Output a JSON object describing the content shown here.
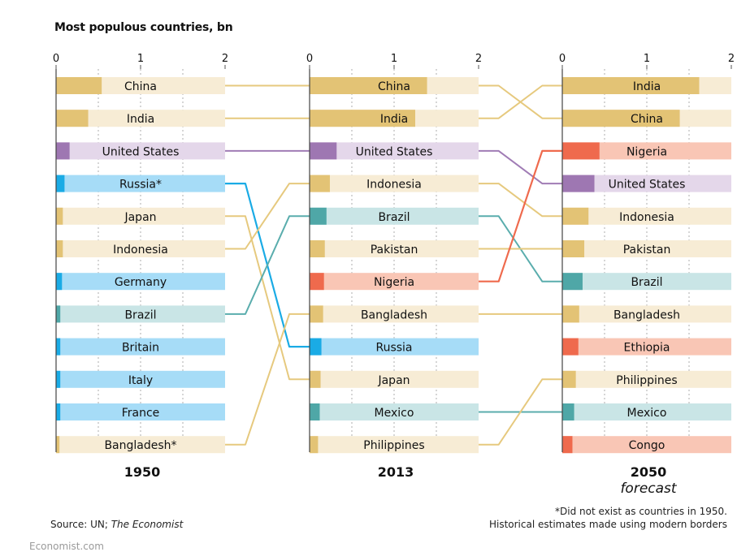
{
  "title": "Most populous countries, bn",
  "source_prefix": "Source: UN; ",
  "source_italic": "The Economist",
  "footnote": [
    "*Did not exist as countries in 1950.",
    "Historical estimates made using modern borders"
  ],
  "watermark": "Economist.com",
  "colors": {
    "gold": {
      "dark": "#e3c375",
      "light": "#f7ecd5",
      "line": "#e6c97e"
    },
    "purple": {
      "dark": "#9e77b2",
      "light": "#e4d7ea",
      "line": "#a07cb5"
    },
    "blue": {
      "dark": "#1aabe5",
      "light": "#a6dcf7",
      "line": "#1aabe5"
    },
    "teal": {
      "dark": "#4fa7a7",
      "light": "#c9e5e6",
      "line": "#5aadad"
    },
    "red": {
      "dark": "#ef6a4d",
      "light": "#f9c6b5",
      "line": "#ef6a4d"
    }
  },
  "chart_data": {
    "type": "bar",
    "title": "Most populous countries, bn",
    "xlim": [
      0,
      2
    ],
    "xticks": [
      "0",
      "1",
      "2"
    ],
    "panels": [
      {
        "year": "1950",
        "subtitle": "",
        "rows": [
          {
            "label": "China",
            "key": "China",
            "value": 0.54,
            "color": "gold"
          },
          {
            "label": "India",
            "key": "India",
            "value": 0.38,
            "color": "gold"
          },
          {
            "label": "United States",
            "key": "United States",
            "value": 0.16,
            "color": "purple"
          },
          {
            "label": "Russia*",
            "key": "Russia",
            "value": 0.1,
            "color": "blue"
          },
          {
            "label": "Japan",
            "key": "Japan",
            "value": 0.08,
            "color": "gold"
          },
          {
            "label": "Indonesia",
            "key": "Indonesia",
            "value": 0.08,
            "color": "gold"
          },
          {
            "label": "Germany",
            "key": "Germany",
            "value": 0.07,
            "color": "blue"
          },
          {
            "label": "Brazil",
            "key": "Brazil",
            "value": 0.05,
            "color": "teal"
          },
          {
            "label": "Britain",
            "key": "Britain",
            "value": 0.05,
            "color": "blue"
          },
          {
            "label": "Italy",
            "key": "Italy",
            "value": 0.05,
            "color": "blue"
          },
          {
            "label": "France",
            "key": "France",
            "value": 0.05,
            "color": "blue"
          },
          {
            "label": "Bangladesh*",
            "key": "Bangladesh",
            "value": 0.04,
            "color": "gold"
          }
        ]
      },
      {
        "year": "2013",
        "subtitle": "",
        "rows": [
          {
            "label": "China",
            "key": "China",
            "value": 1.39,
            "color": "gold"
          },
          {
            "label": "India",
            "key": "India",
            "value": 1.25,
            "color": "gold"
          },
          {
            "label": "United States",
            "key": "United States",
            "value": 0.32,
            "color": "purple"
          },
          {
            "label": "Indonesia",
            "key": "Indonesia",
            "value": 0.24,
            "color": "gold"
          },
          {
            "label": "Brazil",
            "key": "Brazil",
            "value": 0.2,
            "color": "teal"
          },
          {
            "label": "Pakistan",
            "key": "Pakistan",
            "value": 0.18,
            "color": "gold"
          },
          {
            "label": "Nigeria",
            "key": "Nigeria",
            "value": 0.17,
            "color": "red"
          },
          {
            "label": "Bangladesh",
            "key": "Bangladesh",
            "value": 0.16,
            "color": "gold"
          },
          {
            "label": "Russia",
            "key": "Russia",
            "value": 0.14,
            "color": "blue"
          },
          {
            "label": "Japan",
            "key": "Japan",
            "value": 0.13,
            "color": "gold"
          },
          {
            "label": "Mexico",
            "key": "Mexico",
            "value": 0.12,
            "color": "teal"
          },
          {
            "label": "Philippines",
            "key": "Philippines",
            "value": 0.1,
            "color": "gold"
          }
        ]
      },
      {
        "year": "2050",
        "subtitle": "forecast",
        "rows": [
          {
            "label": "India",
            "key": "India",
            "value": 1.62,
            "color": "gold"
          },
          {
            "label": "China",
            "key": "China",
            "value": 1.39,
            "color": "gold"
          },
          {
            "label": "Nigeria",
            "key": "Nigeria",
            "value": 0.44,
            "color": "red"
          },
          {
            "label": "United States",
            "key": "United States",
            "value": 0.38,
            "color": "purple"
          },
          {
            "label": "Indonesia",
            "key": "Indonesia",
            "value": 0.31,
            "color": "gold"
          },
          {
            "label": "Pakistan",
            "key": "Pakistan",
            "value": 0.26,
            "color": "gold"
          },
          {
            "label": "Brazil",
            "key": "Brazil",
            "value": 0.24,
            "color": "teal"
          },
          {
            "label": "Bangladesh",
            "key": "Bangladesh",
            "value": 0.2,
            "color": "gold"
          },
          {
            "label": "Ethiopia",
            "key": "Ethiopia",
            "value": 0.19,
            "color": "red"
          },
          {
            "label": "Philippines",
            "key": "Philippines",
            "value": 0.16,
            "color": "gold"
          },
          {
            "label": "Mexico",
            "key": "Mexico",
            "value": 0.14,
            "color": "teal"
          },
          {
            "label": "Congo",
            "key": "Congo",
            "value": 0.12,
            "color": "red"
          }
        ]
      }
    ],
    "connections": [
      {
        "key": "China",
        "color": "gold"
      },
      {
        "key": "India",
        "color": "gold"
      },
      {
        "key": "United States",
        "color": "purple"
      },
      {
        "key": "Russia",
        "color": "blue"
      },
      {
        "key": "Japan",
        "color": "gold"
      },
      {
        "key": "Indonesia",
        "color": "gold"
      },
      {
        "key": "Brazil",
        "color": "teal"
      },
      {
        "key": "Bangladesh",
        "color": "gold"
      },
      {
        "key": "Pakistan",
        "color": "gold"
      },
      {
        "key": "Nigeria",
        "color": "red"
      },
      {
        "key": "Mexico",
        "color": "teal"
      },
      {
        "key": "Philippines",
        "color": "gold"
      }
    ]
  }
}
